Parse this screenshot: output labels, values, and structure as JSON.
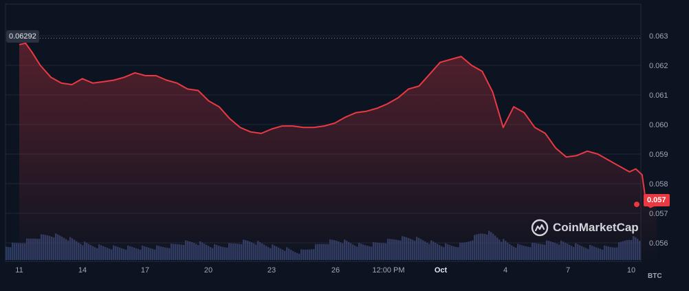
{
  "chart_data": {
    "type": "line",
    "unit": "BTC",
    "high_label": "0.06292",
    "current_label": "0.057",
    "y_ticks": [
      "0.063",
      "0.062",
      "0.061",
      "0.060",
      "0.059",
      "0.058",
      "0.057",
      "0.056"
    ],
    "x_ticks": [
      {
        "label": "11",
        "bold": false
      },
      {
        "label": "14",
        "bold": false
      },
      {
        "label": "17",
        "bold": false
      },
      {
        "label": "20",
        "bold": false
      },
      {
        "label": "23",
        "bold": false
      },
      {
        "label": "26",
        "bold": false
      },
      {
        "label": "12:00 PM",
        "bold": false
      },
      {
        "label": "Oct",
        "bold": true
      },
      {
        "label": "4",
        "bold": false
      },
      {
        "label": "7",
        "bold": false
      },
      {
        "label": "10",
        "bold": false
      }
    ],
    "ylim": [
      0.0558,
      0.0638
    ],
    "grid": true,
    "series": [
      {
        "values": [
          [
            0.0,
            0.0627
          ],
          [
            0.3,
            0.06275
          ],
          [
            0.6,
            0.06245
          ],
          [
            1.0,
            0.062
          ],
          [
            1.5,
            0.0616
          ],
          [
            2.0,
            0.0614
          ],
          [
            2.5,
            0.06135
          ],
          [
            3.0,
            0.06155
          ],
          [
            3.5,
            0.0614
          ],
          [
            4.0,
            0.06145
          ],
          [
            4.5,
            0.0615
          ],
          [
            5.0,
            0.0616
          ],
          [
            5.5,
            0.06175
          ],
          [
            6.0,
            0.06165
          ],
          [
            6.5,
            0.06165
          ],
          [
            7.0,
            0.0615
          ],
          [
            7.5,
            0.0614
          ],
          [
            8.0,
            0.0612
          ],
          [
            8.5,
            0.06115
          ],
          [
            9.0,
            0.0608
          ],
          [
            9.5,
            0.0606
          ],
          [
            10.0,
            0.0602
          ],
          [
            10.5,
            0.0599
          ],
          [
            11.0,
            0.05975
          ],
          [
            11.5,
            0.0597
          ],
          [
            12.0,
            0.05985
          ],
          [
            12.5,
            0.05995
          ],
          [
            13.0,
            0.05995
          ],
          [
            13.5,
            0.0599
          ],
          [
            14.0,
            0.0599
          ],
          [
            14.5,
            0.05995
          ],
          [
            15.0,
            0.06005
          ],
          [
            15.5,
            0.06025
          ],
          [
            16.0,
            0.0604
          ],
          [
            16.5,
            0.06045
          ],
          [
            17.0,
            0.06055
          ],
          [
            17.5,
            0.0607
          ],
          [
            18.0,
            0.0609
          ],
          [
            18.5,
            0.0612
          ],
          [
            19.0,
            0.0613
          ],
          [
            19.5,
            0.0617
          ],
          [
            20.0,
            0.0621
          ],
          [
            20.5,
            0.0622
          ],
          [
            21.0,
            0.0623
          ],
          [
            21.5,
            0.062
          ],
          [
            22.0,
            0.0618
          ],
          [
            22.5,
            0.0611
          ],
          [
            23.0,
            0.0599
          ],
          [
            23.5,
            0.0606
          ],
          [
            24.0,
            0.0604
          ],
          [
            24.5,
            0.0599
          ],
          [
            25.0,
            0.0597
          ],
          [
            25.5,
            0.0592
          ],
          [
            26.0,
            0.0589
          ],
          [
            26.5,
            0.05895
          ],
          [
            27.0,
            0.0591
          ],
          [
            27.5,
            0.059
          ],
          [
            28.0,
            0.0588
          ],
          [
            28.5,
            0.0586
          ],
          [
            29.0,
            0.0584
          ],
          [
            29.3,
            0.0585
          ],
          [
            29.6,
            0.0583
          ],
          [
            29.8,
            0.0573
          ],
          [
            30.0,
            0.0572
          ],
          [
            30.3,
            0.0573
          ]
        ]
      }
    ]
  },
  "brand": {
    "name": "CoinMarketCap"
  }
}
